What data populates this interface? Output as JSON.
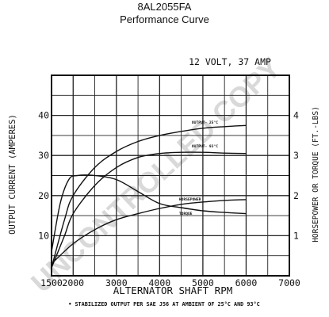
{
  "chart_data": {
    "type": "line",
    "title": "8AL2055FA",
    "subtitle": "Performance Curve",
    "rating": "12 VOLT, 37 AMP",
    "xlabel": "ALTERNATOR SHAFT RPM",
    "ylabel_left": "OUTPUT CURRENT (AMPERES)",
    "ylabel_right": "HORSEPOWER OR TORQUE (FT.-LBS)",
    "xlim": [
      1500,
      7000
    ],
    "ylim_left": [
      0,
      50
    ],
    "ylim_right": [
      0,
      5
    ],
    "grid": true,
    "x_ticks": [
      1500,
      2000,
      3000,
      4000,
      5000,
      6000,
      7000
    ],
    "x_tick_labels": [
      "1500",
      "2000",
      "3000",
      "4000",
      "5000",
      "6000",
      "7000"
    ],
    "y_ticks_left": [
      10,
      20,
      30,
      40
    ],
    "y_tick_labels_left": [
      "10",
      "20",
      "30",
      "40"
    ],
    "y_ticks_right": [
      1,
      2,
      3,
      4
    ],
    "y_tick_labels_right": [
      "1",
      "2",
      "3",
      "4"
    ],
    "footnote": "• STABILIZED OUTPUT PER SAE J56 AT AMBIENT OF 25°C AND 93°C",
    "watermark": "UNCONTROLLED COPY",
    "series": [
      {
        "name": "OUTPUT-",
        "qualifier": "25°C",
        "axis": "left",
        "x": [
          1500,
          1800,
          2000,
          2500,
          3000,
          3500,
          4000,
          4500,
          5000,
          5500,
          6000
        ],
        "y": [
          2,
          14,
          20,
          27,
          31,
          33.5,
          35,
          36,
          36.8,
          37.2,
          37.5
        ]
      },
      {
        "name": "OUTPUT-",
        "qualifier": "93°C",
        "axis": "left",
        "x": [
          1500,
          1800,
          2000,
          2500,
          3000,
          3500,
          4000,
          4500,
          5000,
          5500,
          6000
        ],
        "y": [
          2,
          10,
          15.5,
          22.5,
          27,
          29.5,
          30.5,
          30.8,
          30.8,
          30.6,
          30.5
        ]
      },
      {
        "name": "HORSEPOWER",
        "axis": "right",
        "x": [
          1500,
          2000,
          2500,
          3000,
          3500,
          4000,
          4500,
          5000,
          5500,
          6000
        ],
        "y": [
          0.3,
          0.8,
          1.15,
          1.4,
          1.55,
          1.68,
          1.78,
          1.84,
          1.88,
          1.9
        ]
      },
      {
        "name": "TORQUE",
        "axis": "right",
        "x": [
          1500,
          1700,
          1900,
          2100,
          2500,
          3000,
          3500,
          4000,
          4500,
          5000,
          5500,
          6000
        ],
        "y": [
          0.6,
          1.8,
          2.4,
          2.5,
          2.5,
          2.4,
          2.1,
          1.8,
          1.7,
          1.62,
          1.58,
          1.55
        ]
      }
    ]
  }
}
